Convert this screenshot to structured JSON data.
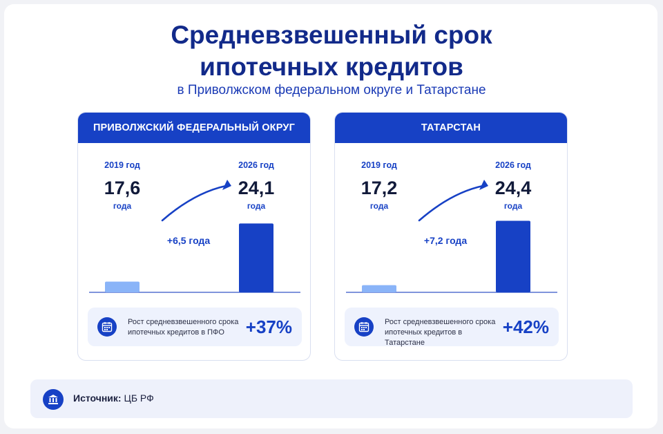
{
  "header": {
    "title_line1": "Средневзвешенный срок",
    "title_line2": "ипотечных кредитов",
    "subtitle": "в  Приволжском федеральном округе и Татарстане"
  },
  "chart_data": [
    {
      "type": "bar",
      "title": "ПРИВОЛЖСКИЙ ФЕДЕРАЛЬНЫЙ ОКРУГ",
      "categories": [
        "2019 год",
        "2026 год"
      ],
      "values": [
        17.6,
        24.1
      ],
      "value_labels": [
        "17,6",
        "24,1"
      ],
      "unit": "года",
      "change_label": "+6,5 года",
      "summary_text": "Рост средневзвешенного срока ипотечных кредитов в ПФО",
      "summary_pct": "+37%",
      "colors": [
        "#8ab4f8",
        "#1741c5"
      ]
    },
    {
      "type": "bar",
      "title": "ТАТАРСТАН",
      "categories": [
        "2019 год",
        "2026 год"
      ],
      "values": [
        17.2,
        24.4
      ],
      "value_labels": [
        "17,2",
        "24,4"
      ],
      "unit": "года",
      "change_label": "+7,2 года",
      "summary_text": "Рост средневзвешенного срока ипотечных кредитов в Татарстане",
      "summary_pct": "+42%",
      "colors": [
        "#8ab4f8",
        "#1741c5"
      ]
    }
  ],
  "icons": {
    "summary": "calendar-icon",
    "source": "bank-icon"
  },
  "source": {
    "label": "Источник:",
    "value": " ЦБ РФ"
  }
}
